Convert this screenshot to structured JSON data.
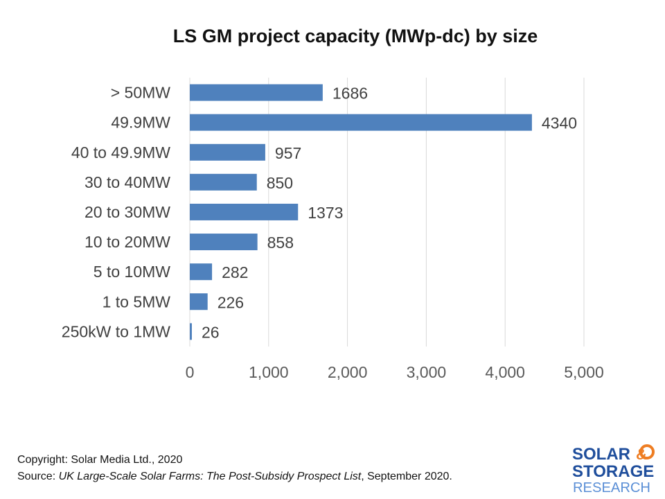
{
  "chart_data": {
    "type": "bar",
    "orientation": "horizontal",
    "title": "LS GM project capacity (MWp-dc) by size",
    "categories": [
      "> 50MW",
      "49.9MW",
      "40 to 49.9MW",
      "30 to 40MW",
      "20 to 30MW",
      "10 to 20MW",
      "5 to 10MW",
      "1 to 5MW",
      "250kW to 1MW"
    ],
    "values": [
      1686,
      4340,
      957,
      850,
      1373,
      858,
      282,
      226,
      26
    ],
    "data_labels": [
      "1686",
      "4340",
      "957",
      "850",
      "1373",
      "858",
      "282",
      "226",
      "26"
    ],
    "xlim": [
      0,
      5000
    ],
    "x_ticks": [
      0,
      1000,
      2000,
      3000,
      4000,
      5000
    ],
    "x_tick_labels": [
      "0",
      "1,000",
      "2,000",
      "3,000",
      "4,000",
      "5,000"
    ],
    "grid": "vertical",
    "legend": "none",
    "bar_color": "#4f81bd"
  },
  "footer": {
    "copyright": "Copyright: Solar Media Ltd., 2020",
    "source_prefix": "Source: ",
    "source_title": "UK Large-Scale Solar Farms: The Post-Subsidy Prospect List",
    "source_suffix": ", September 2020."
  },
  "logo": {
    "line1": "SOLAR",
    "amp": "&",
    "line2": "STORAGE",
    "line3": "RESEARCH",
    "primary_color": "#1f4e9c",
    "accent_color": "#ee7d22"
  }
}
